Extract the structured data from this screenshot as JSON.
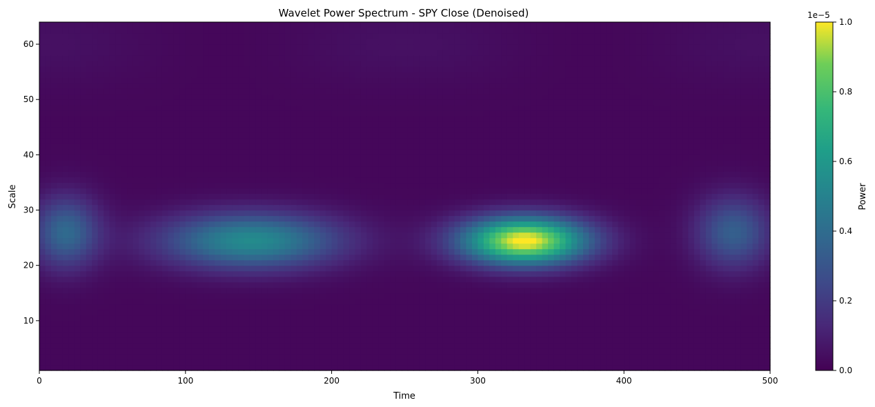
{
  "chart_data": {
    "type": "heatmap",
    "title": "Wavelet Power Spectrum - SPY Close (Denoised)",
    "xlabel": "Time",
    "ylabel": "Scale",
    "xlim": [
      0,
      500
    ],
    "ylim": [
      1,
      64
    ],
    "x_ticks": [
      0,
      100,
      200,
      300,
      400,
      500
    ],
    "y_ticks": [
      10,
      20,
      30,
      40,
      50,
      60
    ],
    "colormap": "viridis",
    "colorbar": {
      "label": "Power",
      "range": [
        0.0,
        1.0
      ],
      "multiplier": "1e−5",
      "ticks": [
        0.0,
        0.2,
        0.4,
        0.6,
        0.8,
        1.0
      ]
    },
    "grid": false,
    "features": [
      {
        "time": 18,
        "scale": 26,
        "time_width": 16,
        "scale_width": 4.5,
        "power": 0.36
      },
      {
        "time": 145,
        "scale": 24.5,
        "time_width": 42,
        "scale_width": 3.5,
        "power": 0.52
      },
      {
        "time": 332,
        "scale": 24.5,
        "time_width": 30,
        "scale_width": 3.0,
        "power": 1.0
      },
      {
        "time": 475,
        "scale": 26,
        "time_width": 18,
        "scale_width": 4.5,
        "power": 0.32
      }
    ]
  }
}
